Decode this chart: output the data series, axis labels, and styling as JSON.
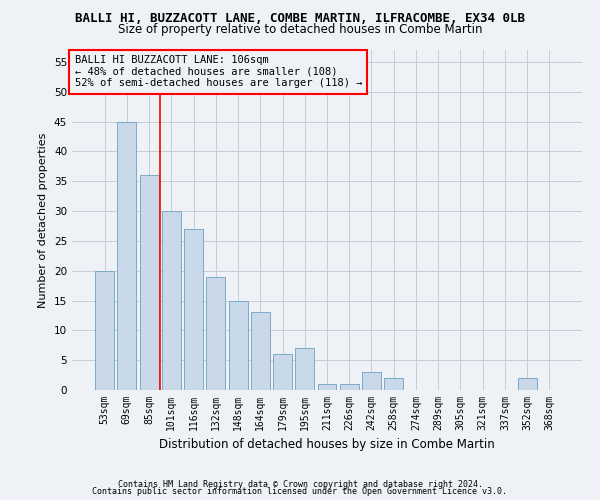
{
  "title": "BALLI HI, BUZZACOTT LANE, COMBE MARTIN, ILFRACOMBE, EX34 0LB",
  "subtitle": "Size of property relative to detached houses in Combe Martin",
  "xlabel": "Distribution of detached houses by size in Combe Martin",
  "ylabel": "Number of detached properties",
  "footer_line1": "Contains HM Land Registry data © Crown copyright and database right 2024.",
  "footer_line2": "Contains public sector information licensed under the Open Government Licence v3.0.",
  "categories": [
    "53sqm",
    "69sqm",
    "85sqm",
    "101sqm",
    "116sqm",
    "132sqm",
    "148sqm",
    "164sqm",
    "179sqm",
    "195sqm",
    "211sqm",
    "226sqm",
    "242sqm",
    "258sqm",
    "274sqm",
    "289sqm",
    "305sqm",
    "321sqm",
    "337sqm",
    "352sqm",
    "368sqm"
  ],
  "values": [
    20,
    45,
    36,
    30,
    27,
    19,
    15,
    13,
    6,
    7,
    1,
    1,
    3,
    2,
    0,
    0,
    0,
    0,
    0,
    2,
    0
  ],
  "bar_color": "#c9d9ea",
  "bar_edge_color": "#7aaac8",
  "annotation_box_text": "BALLI HI BUZZACOTT LANE: 106sqm\n← 48% of detached houses are smaller (108)\n52% of semi-detached houses are larger (118) →",
  "vline_color": "red",
  "vline_position": 2.5,
  "ylim": [
    0,
    57
  ],
  "yticks": [
    0,
    5,
    10,
    15,
    20,
    25,
    30,
    35,
    40,
    45,
    50,
    55
  ],
  "bg_color": "#eef2f6",
  "grid_color": "#c5cdd6",
  "title_fontsize": 9,
  "subtitle_fontsize": 8.5,
  "ylabel_fontsize": 8,
  "xlabel_fontsize": 8.5,
  "tick_fontsize": 7,
  "annotation_fontsize": 7.5,
  "footer_fontsize": 6
}
